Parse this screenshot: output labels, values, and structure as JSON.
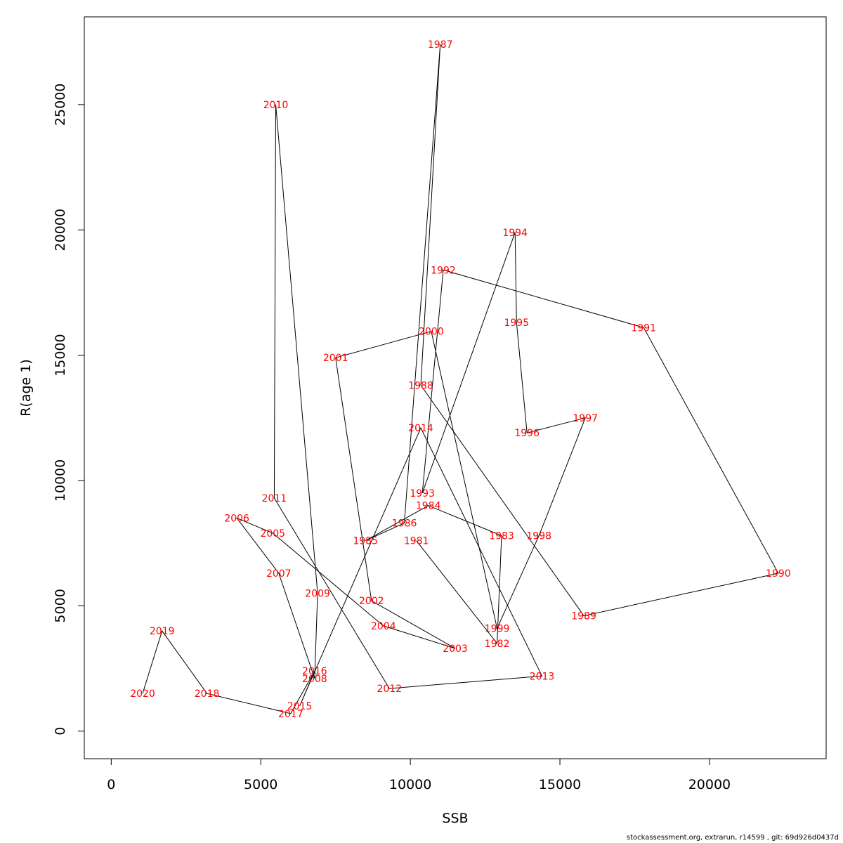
{
  "chart_data": {
    "type": "scatter",
    "xlabel": "SSB",
    "ylabel": "R(age 1)",
    "xlim": [
      -900,
      23900
    ],
    "ylim": [
      -1100,
      28500
    ],
    "xticks": [
      0,
      5000,
      10000,
      15000,
      20000
    ],
    "yticks": [
      0,
      5000,
      10000,
      15000,
      20000,
      25000
    ],
    "grid": false,
    "line_color": "#000000",
    "label_color": "#ff0000",
    "points": [
      {
        "label": "1981",
        "x": 10200,
        "y": 7600
      },
      {
        "label": "1982",
        "x": 12900,
        "y": 3500
      },
      {
        "label": "1983",
        "x": 13050,
        "y": 7800
      },
      {
        "label": "1984",
        "x": 10600,
        "y": 9000
      },
      {
        "label": "1985",
        "x": 8500,
        "y": 7600
      },
      {
        "label": "1986",
        "x": 9800,
        "y": 8300
      },
      {
        "label": "1987",
        "x": 11000,
        "y": 27400
      },
      {
        "label": "1988",
        "x": 10350,
        "y": 13800
      },
      {
        "label": "1989",
        "x": 15800,
        "y": 4600
      },
      {
        "label": "1990",
        "x": 22300,
        "y": 6300
      },
      {
        "label": "1991",
        "x": 17800,
        "y": 16100
      },
      {
        "label": "1992",
        "x": 11100,
        "y": 18400
      },
      {
        "label": "1993",
        "x": 10400,
        "y": 9500
      },
      {
        "label": "1994",
        "x": 13500,
        "y": 19900
      },
      {
        "label": "1995",
        "x": 13550,
        "y": 16300
      },
      {
        "label": "1996",
        "x": 13900,
        "y": 11900
      },
      {
        "label": "1997",
        "x": 15850,
        "y": 12500
      },
      {
        "label": "1998",
        "x": 14300,
        "y": 7800
      },
      {
        "label": "1999",
        "x": 12900,
        "y": 4100
      },
      {
        "label": "2000",
        "x": 10700,
        "y": 15950
      },
      {
        "label": "2001",
        "x": 7500,
        "y": 14900
      },
      {
        "label": "2002",
        "x": 8700,
        "y": 5200
      },
      {
        "label": "2003",
        "x": 11500,
        "y": 3300
      },
      {
        "label": "2004",
        "x": 9100,
        "y": 4200
      },
      {
        "label": "2005",
        "x": 5400,
        "y": 7900
      },
      {
        "label": "2006",
        "x": 4200,
        "y": 8500
      },
      {
        "label": "2007",
        "x": 5600,
        "y": 6300
      },
      {
        "label": "2008",
        "x": 6800,
        "y": 2100
      },
      {
        "label": "2009",
        "x": 6900,
        "y": 5500
      },
      {
        "label": "2010",
        "x": 5500,
        "y": 25000
      },
      {
        "label": "2011",
        "x": 5450,
        "y": 9300
      },
      {
        "label": "2012",
        "x": 9300,
        "y": 1700
      },
      {
        "label": "2013",
        "x": 14400,
        "y": 2200
      },
      {
        "label": "2014",
        "x": 10350,
        "y": 12100
      },
      {
        "label": "2015",
        "x": 6300,
        "y": 1000
      },
      {
        "label": "2016",
        "x": 6800,
        "y": 2400
      },
      {
        "label": "2017",
        "x": 6000,
        "y": 700
      },
      {
        "label": "2018",
        "x": 3200,
        "y": 1500
      },
      {
        "label": "2019",
        "x": 1700,
        "y": 4000
      },
      {
        "label": "2020",
        "x": 1050,
        "y": 1500
      }
    ]
  },
  "footer": {
    "note": "stockassessment.org, extrarun, r14599 , git: 69d926d0437d"
  }
}
